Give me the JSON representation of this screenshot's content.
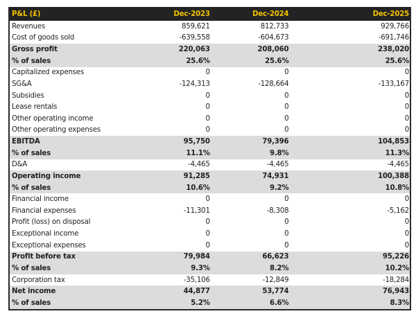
{
  "header": {
    "title": "P&L (£)",
    "columns": [
      "Dec-2023",
      "Dec-2024",
      "Dec-2025"
    ]
  },
  "colors": {
    "header_bg": "#232323",
    "header_text": "#f2c200",
    "highlight_row": "#dcdcdc"
  },
  "rows": [
    {
      "label": "Revenues",
      "values": [
        "859,621",
        "812,733",
        "929,766"
      ],
      "bold": false
    },
    {
      "label": "Cost of goods sold",
      "values": [
        "-639,558",
        "-604,673",
        "-691,746"
      ],
      "bold": false
    },
    {
      "label": "Gross profit",
      "values": [
        "220,063",
        "208,060",
        "238,020"
      ],
      "bold": true
    },
    {
      "label": "% of sales",
      "values": [
        "25.6%",
        "25.6%",
        "25.6%"
      ],
      "bold": true
    },
    {
      "label": "Capitalized expenses",
      "values": [
        "0",
        "0",
        "0"
      ],
      "bold": false
    },
    {
      "label": "SG&A",
      "values": [
        "-124,313",
        "-128,664",
        "-133,167"
      ],
      "bold": false
    },
    {
      "label": "Subsidies",
      "values": [
        "0",
        "0",
        "0"
      ],
      "bold": false
    },
    {
      "label": "Lease rentals",
      "values": [
        "0",
        "0",
        "0"
      ],
      "bold": false
    },
    {
      "label": "Other operating income",
      "values": [
        "0",
        "0",
        "0"
      ],
      "bold": false
    },
    {
      "label": "Other operating expenses",
      "values": [
        "0",
        "0",
        "0"
      ],
      "bold": false
    },
    {
      "label": "EBITDA",
      "values": [
        "95,750",
        "79,396",
        "104,853"
      ],
      "bold": true
    },
    {
      "label": "% of sales",
      "values": [
        "11.1%",
        "9.8%",
        "11.3%"
      ],
      "bold": true
    },
    {
      "label": "D&A",
      "values": [
        "-4,465",
        "-4,465",
        "-4,465"
      ],
      "bold": false
    },
    {
      "label": "Operating income",
      "values": [
        "91,285",
        "74,931",
        "100,388"
      ],
      "bold": true
    },
    {
      "label": "% of sales",
      "values": [
        "10.6%",
        "9.2%",
        "10.8%"
      ],
      "bold": true
    },
    {
      "label": "Financial income",
      "values": [
        "0",
        "0",
        "0"
      ],
      "bold": false
    },
    {
      "label": "Financial expenses",
      "values": [
        "-11,301",
        "-8,308",
        "-5,162"
      ],
      "bold": false
    },
    {
      "label": "Profit (loss) on disposal",
      "values": [
        "0",
        "0",
        "0"
      ],
      "bold": false
    },
    {
      "label": "Exceptional income",
      "values": [
        "0",
        "0",
        "0"
      ],
      "bold": false
    },
    {
      "label": "Exceptional expenses",
      "values": [
        "0",
        "0",
        "0"
      ],
      "bold": false
    },
    {
      "label": "Profit before tax",
      "values": [
        "79,984",
        "66,623",
        "95,226"
      ],
      "bold": true
    },
    {
      "label": "% of sales",
      "values": [
        "9.3%",
        "8.2%",
        "10.2%"
      ],
      "bold": true
    },
    {
      "label": "Corporation tax",
      "values": [
        "-35,106",
        "-12,849",
        "-18,284"
      ],
      "bold": false
    },
    {
      "label": "Net income",
      "values": [
        "44,877",
        "53,774",
        "76,943"
      ],
      "bold": true
    },
    {
      "label": "% of sales",
      "values": [
        "5.2%",
        "6.6%",
        "8.3%"
      ],
      "bold": true
    }
  ]
}
